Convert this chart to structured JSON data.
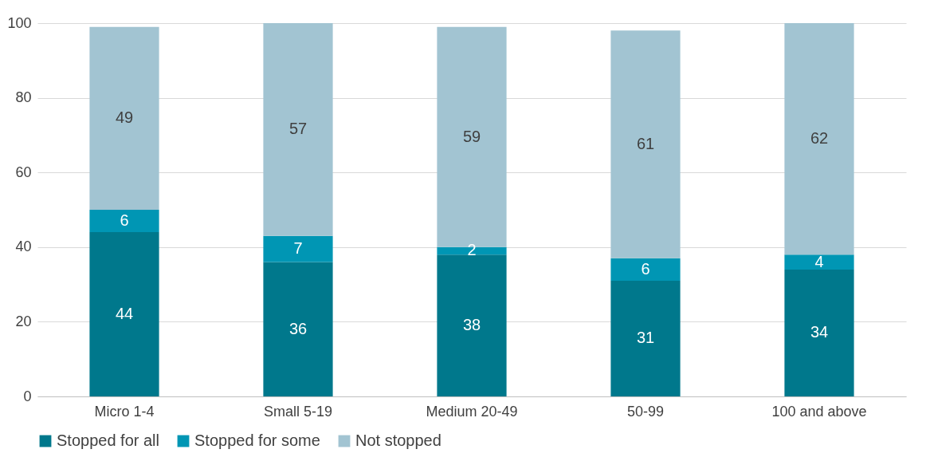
{
  "chart_data": {
    "type": "bar",
    "stacked": true,
    "categories": [
      "Micro 1-4",
      "Small 5-19",
      "Medium 20-49",
      "50-99",
      "100 and above"
    ],
    "series": [
      {
        "name": "Stopped for all",
        "color": "#00788c",
        "values": [
          44,
          36,
          38,
          31,
          34
        ]
      },
      {
        "name": "Stopped for some",
        "color": "#0096b4",
        "values": [
          6,
          7,
          2,
          6,
          4
        ]
      },
      {
        "name": "Not stopped",
        "color": "#a2c4d2",
        "values": [
          49,
          57,
          59,
          61,
          62
        ]
      }
    ],
    "ylim": [
      0,
      100
    ],
    "yticks": [
      0,
      20,
      40,
      60,
      80,
      100
    ],
    "grid": "y",
    "legend": "bottom",
    "data_labels": true
  }
}
